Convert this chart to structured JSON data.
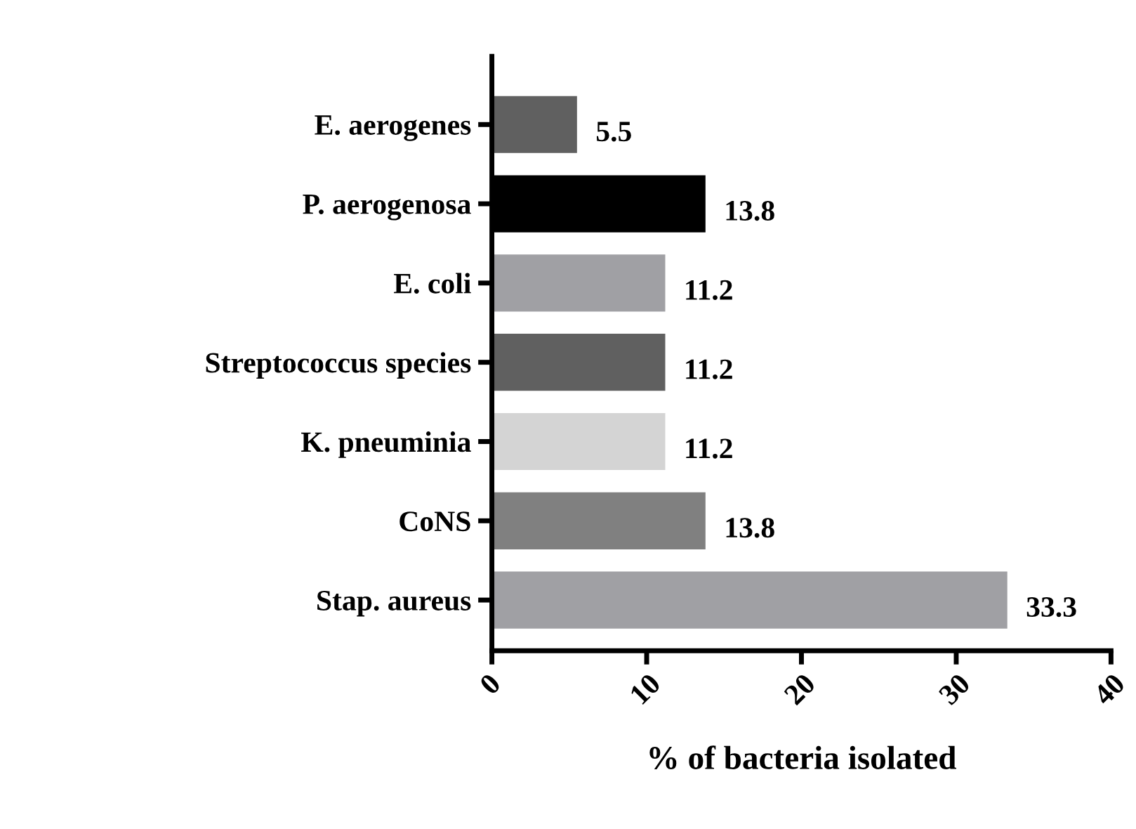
{
  "chart_data": {
    "type": "bar",
    "orientation": "horizontal",
    "xlabel": "% of bacteria isolated",
    "categories": [
      "E. aerogenes",
      "P. aerogenosa",
      "E. coli",
      "Streptococcus species",
      "K. pneuminia",
      "CoNS",
      "Stap. aureus"
    ],
    "values": [
      5.5,
      13.8,
      11.2,
      11.2,
      11.2,
      13.8,
      33.3
    ],
    "colors": [
      "#606060",
      "#000000",
      "#a0a0a4",
      "#606060",
      "#d4d4d4",
      "#808080",
      "#a0a0a4"
    ],
    "xlim": [
      0,
      40
    ],
    "xticks": [
      0,
      10,
      20,
      30,
      40
    ],
    "data_labels": true,
    "grid": false
  }
}
